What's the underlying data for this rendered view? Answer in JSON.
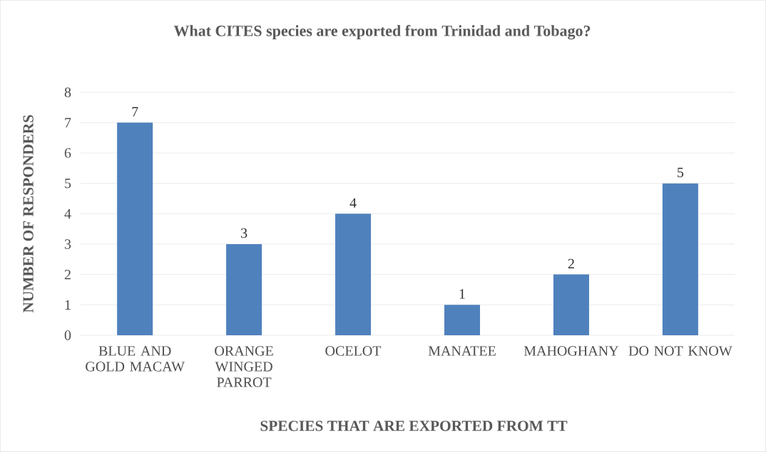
{
  "chart_data": {
    "type": "bar",
    "title": "What CITES species are exported from Trinidad and Tobago?",
    "xlabel": "SPECIES THAT ARE EXPORTED FROM TT",
    "ylabel": "NUMBER OF RESPONDERS",
    "categories": [
      "BLUE AND GOLD MACAW",
      "ORANGE WINGED PARROT",
      "OCELOT",
      "MANATEE",
      "MAHOGHANY",
      "DO NOT KNOW"
    ],
    "values": [
      7,
      3,
      4,
      1,
      2,
      5
    ],
    "color": "#4f81bd",
    "ylim": [
      0,
      8
    ],
    "yticks": [
      0,
      1,
      2,
      3,
      4,
      5,
      6,
      7,
      8
    ],
    "grid": "y",
    "data_labels": true
  }
}
